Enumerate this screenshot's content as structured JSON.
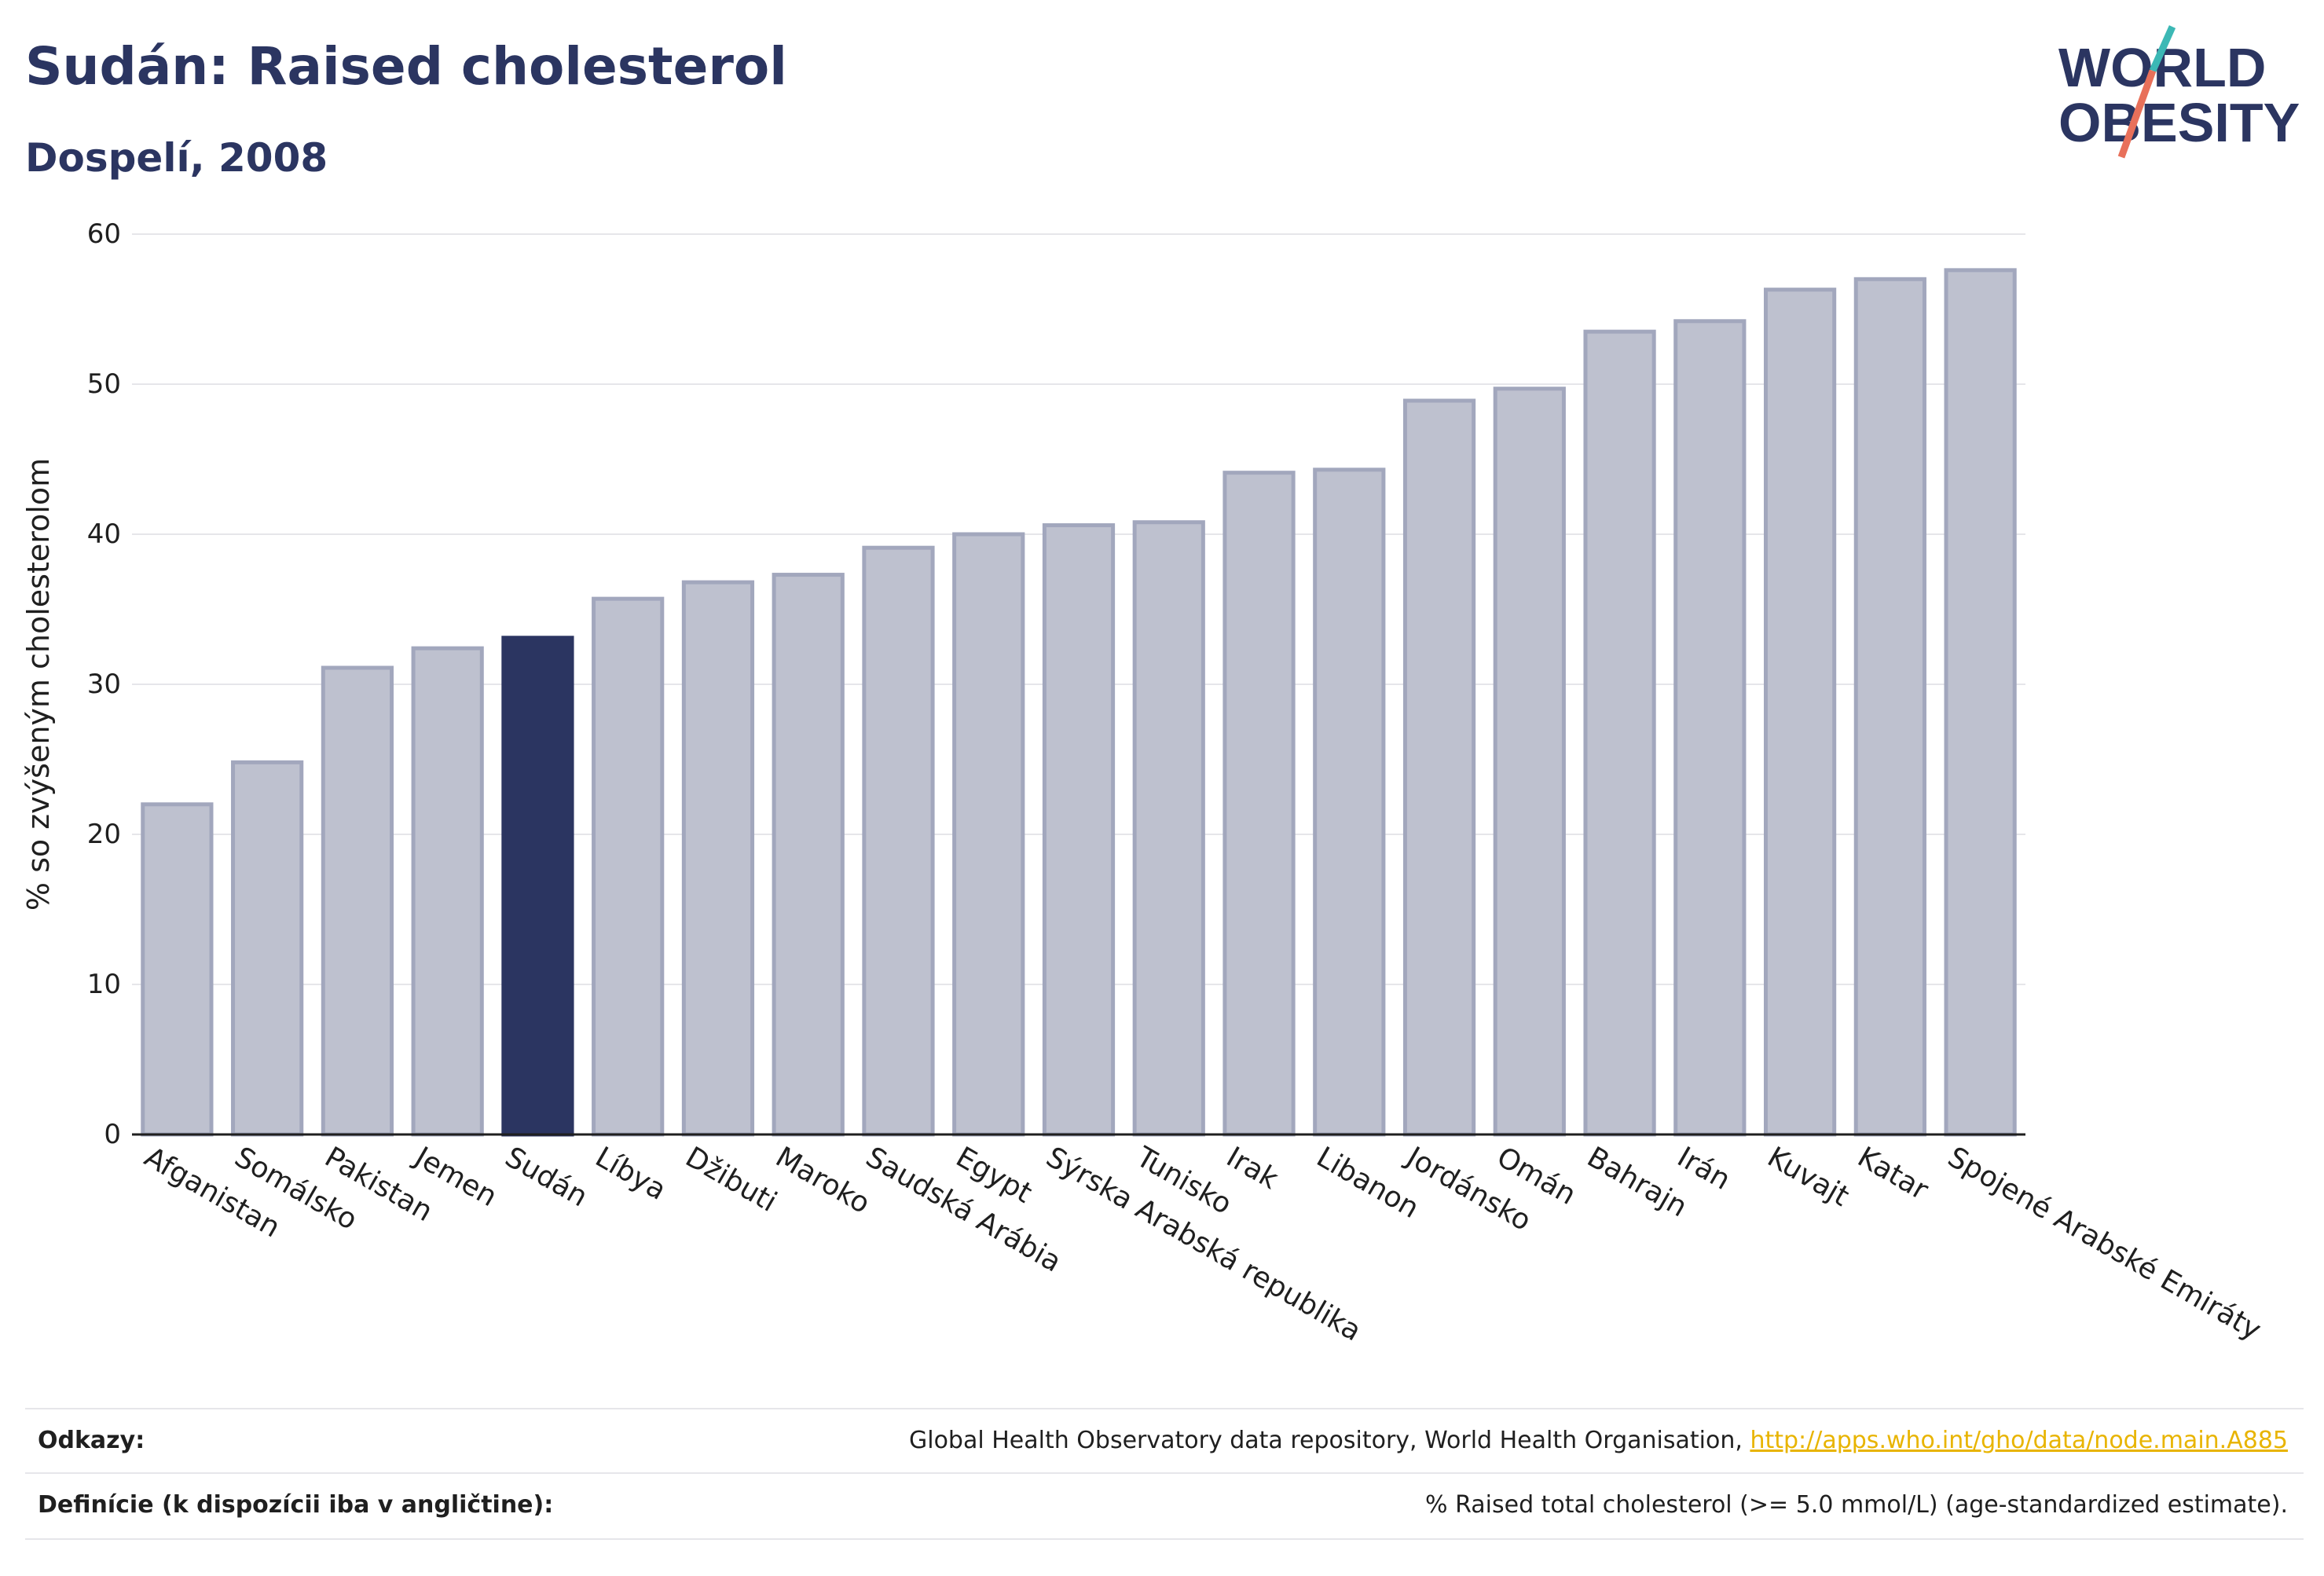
{
  "header": {
    "title": "Sudán: Raised cholesterol",
    "subtitle": "Dospelí, 2008"
  },
  "logo": {
    "line1": "WORLD",
    "line2": "OBESITY",
    "accent_teal": "#3cb8b5",
    "accent_coral": "#e8705a",
    "text_color": "#2b3561"
  },
  "colors": {
    "bar_default": "#bec1cf",
    "bar_border": "#a2a7bd",
    "bar_highlight": "#2b3561",
    "grid": "#e6e6ea",
    "axis": "#1f1f1f"
  },
  "chart_data": {
    "type": "bar",
    "title": "Sudán: Raised cholesterol",
    "subtitle": "Dospelí, 2008",
    "xlabel": "",
    "ylabel": "% so zvýšeným cholesterolom",
    "ylim": [
      0,
      60
    ],
    "yticks": [
      0,
      10,
      20,
      30,
      40,
      50,
      60
    ],
    "grid": true,
    "highlight": "Sudán",
    "categories": [
      "Afganistan",
      "Somálsko",
      "Pakistan",
      "Jemen",
      "Sudán",
      "Líbya",
      "Džibuti",
      "Maroko",
      "Saudská Arábia",
      "Egypt",
      "Sýrska Arabská republika",
      "Tunisko",
      "Irak",
      "Libanon",
      "Jordánsko",
      "Omán",
      "Bahrajn",
      "Irán",
      "Kuvajt",
      "Katar",
      "Spojené Arabské Emiráty"
    ],
    "values": [
      22.0,
      24.8,
      31.1,
      32.4,
      33.1,
      35.7,
      36.8,
      37.3,
      39.1,
      40.0,
      40.6,
      40.8,
      44.1,
      44.3,
      48.9,
      49.7,
      53.5,
      54.2,
      56.3,
      57.0,
      57.6
    ]
  },
  "footer": {
    "references_label": "Odkazy:",
    "references_text": "Global Health Observatory data repository, World Health Organisation,",
    "references_link": "http://apps.who.int/gho/data/node.main.A885",
    "definitions_label": "Definície (k dispozícii iba v angličtine):",
    "definitions_text": "% Raised total cholesterol (>= 5.0 mmol/L) (age-standardized estimate)."
  }
}
